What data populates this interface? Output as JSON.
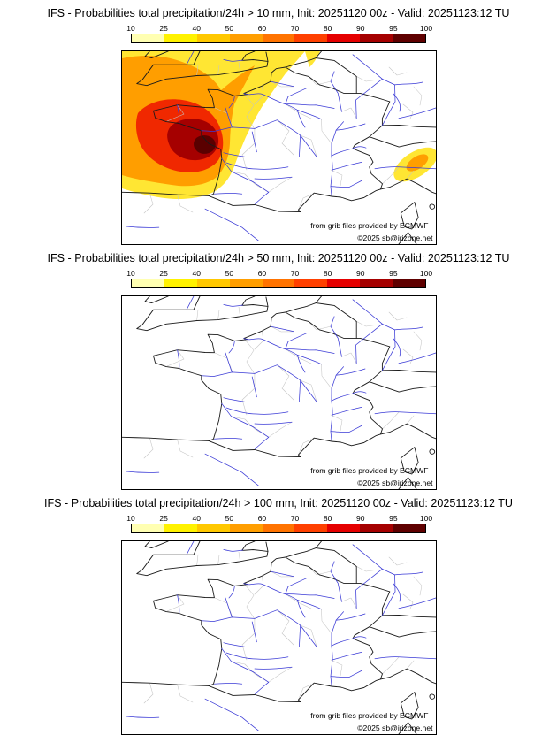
{
  "panels": [
    {
      "title": "IFS - Probabilities total precipitation/24h > 10 mm, Init: 20251120 00z - Valid: 20251123:12 TU",
      "threshold": "> 10 mm",
      "init": "20251120 00z",
      "valid": "20251123:12 TU"
    },
    {
      "title": "IFS - Probabilities total precipitation/24h > 50 mm, Init: 20251120 00z - Valid: 20251123:12 TU",
      "threshold": "> 50 mm",
      "init": "20251120 00z",
      "valid": "20251123:12 TU"
    },
    {
      "title": "IFS - Probabilities total precipitation/24h > 100 mm, Init: 20251120 00z - Valid: 20251123:12 TU",
      "threshold": "> 100 mm",
      "init": "20251120 00z",
      "valid": "20251123:12 TU"
    }
  ],
  "colorbar": {
    "ticks": [
      "10",
      "25",
      "40",
      "50",
      "60",
      "70",
      "80",
      "90",
      "95",
      "100"
    ],
    "colors": [
      "#ffffb2",
      "#fff200",
      "#ffc800",
      "#ff9e00",
      "#ff7300",
      "#ff4000",
      "#e50000",
      "#a50000",
      "#5f0000"
    ]
  },
  "attribution": {
    "line1": "from grib files provided by ECMWF",
    "line2": "©2025 sb@irizone.net"
  },
  "map_colors": {
    "rivers": "#3a3ad6",
    "coast_borders": "#1a1a1a",
    "admin_lines": "#c4c4c4",
    "background": "#ffffff"
  }
}
